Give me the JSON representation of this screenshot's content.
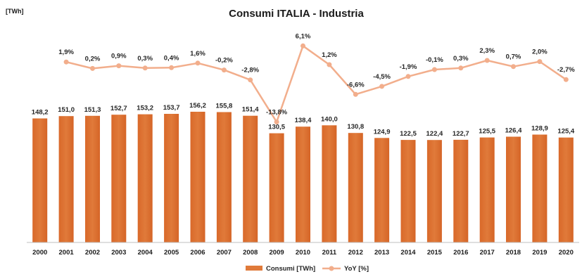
{
  "chart_data": {
    "type": "bar",
    "title": "Consumi ITALIA - Industria",
    "unit_label": "[TWh]",
    "categories": [
      "2000",
      "2001",
      "2002",
      "2003",
      "2004",
      "2005",
      "2006",
      "2007",
      "2008",
      "2009",
      "2010",
      "2011",
      "2012",
      "2013",
      "2014",
      "2015",
      "2016",
      "2017",
      "2018",
      "2019",
      "2020"
    ],
    "series": [
      {
        "name": "Consumi [TWh]",
        "type": "bar",
        "color": "#E07A3A",
        "values": [
          148.2,
          151.0,
          151.3,
          152.7,
          153.2,
          153.7,
          156.2,
          155.8,
          151.4,
          130.5,
          138.4,
          140.0,
          130.8,
          124.9,
          122.5,
          122.4,
          122.7,
          125.5,
          126.4,
          128.9,
          125.4
        ],
        "labels": [
          "148,2",
          "151,0",
          "151,3",
          "152,7",
          "153,2",
          "153,7",
          "156,2",
          "155,8",
          "151,4",
          "130,5",
          "138,4",
          "140,0",
          "130,8",
          "124,9",
          "122,5",
          "122,4",
          "122,7",
          "125,5",
          "126,4",
          "128,9",
          "125,4"
        ]
      },
      {
        "name": "YoY [%]",
        "type": "line",
        "color": "#F2AE8C",
        "values": [
          null,
          1.9,
          0.2,
          0.9,
          0.3,
          0.4,
          1.6,
          -0.2,
          -2.8,
          -13.8,
          6.1,
          1.2,
          -6.6,
          -4.5,
          -1.9,
          -0.1,
          0.3,
          2.3,
          0.7,
          2.0,
          -2.7
        ],
        "labels": [
          "",
          "1,9%",
          "0,2%",
          "0,9%",
          "0,3%",
          "0,4%",
          "1,6%",
          "-0,2%",
          "-2,8%",
          "-13,8%",
          "6,1%",
          "1,2%",
          "-6,6%",
          "-4,5%",
          "-1,9%",
          "-0,1%",
          "0,3%",
          "2,3%",
          "0,7%",
          "2,0%",
          "-2,7%"
        ]
      }
    ],
    "bar_ylim": [
      0,
      180
    ],
    "yoy_ylim": [
      -15,
      8
    ],
    "grid": false,
    "legend": "bottom-center"
  }
}
